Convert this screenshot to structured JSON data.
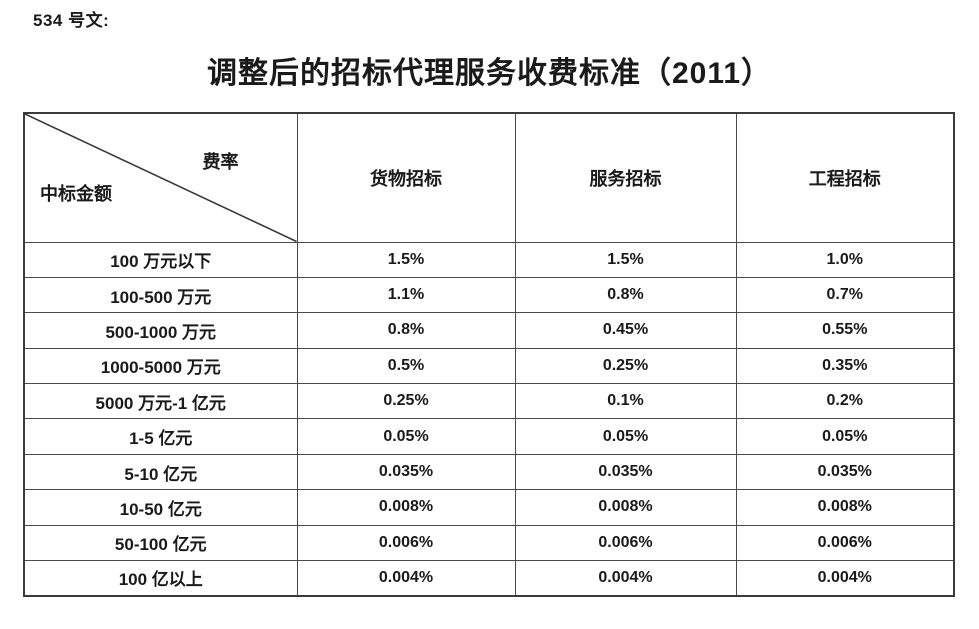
{
  "doc": {
    "ref_label": "534 号文:",
    "title": "调整后的招标代理服务收费标准（2011）"
  },
  "table": {
    "corner": {
      "top_right": "费率",
      "bottom_left": "中标金额"
    },
    "columns": [
      "货物招标",
      "服务招标",
      "工程招标"
    ],
    "rows": [
      {
        "range": "100 万元以下",
        "values": [
          "1.5%",
          "1.5%",
          "1.0%"
        ]
      },
      {
        "range": "100-500 万元",
        "values": [
          "1.1%",
          "0.8%",
          "0.7%"
        ]
      },
      {
        "range": "500-1000 万元",
        "values": [
          "0.8%",
          "0.45%",
          "0.55%"
        ]
      },
      {
        "range": "1000-5000 万元",
        "values": [
          "0.5%",
          "0.25%",
          "0.35%"
        ]
      },
      {
        "range": "5000 万元-1 亿元",
        "values": [
          "0.25%",
          "0.1%",
          "0.2%"
        ]
      },
      {
        "range": "1-5 亿元",
        "values": [
          "0.05%",
          "0.05%",
          "0.05%"
        ]
      },
      {
        "range": "5-10 亿元",
        "values": [
          "0.035%",
          "0.035%",
          "0.035%"
        ]
      },
      {
        "range": "10-50 亿元",
        "values": [
          "0.008%",
          "0.008%",
          "0.008%"
        ]
      },
      {
        "range": "50-100 亿元",
        "values": [
          "0.006%",
          "0.006%",
          "0.006%"
        ]
      },
      {
        "range": "100 亿以上",
        "values": [
          "0.004%",
          "0.004%",
          "0.004%"
        ]
      }
    ]
  },
  "colors": {
    "text": "#1a1a1a",
    "border_outer": "#3a3a3a",
    "border_inner": "#4a4a4a",
    "background": "#ffffff"
  }
}
